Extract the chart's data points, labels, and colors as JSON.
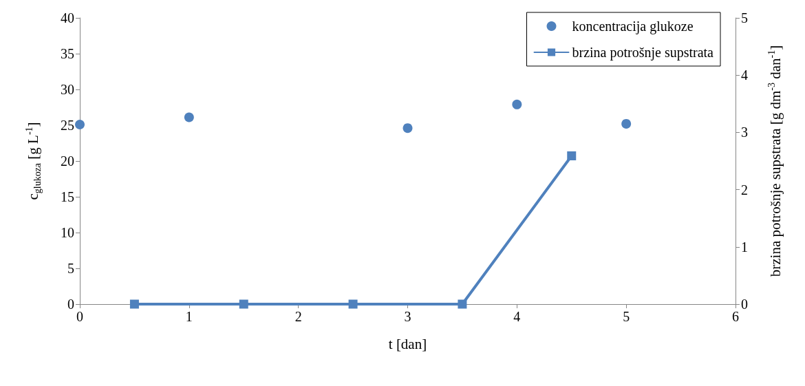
{
  "chart_data": {
    "type": "scatter",
    "xlabel": "t [dan]",
    "ylabel": "c$_{glukoza}$ [g L$^{-1}$]",
    "y2label": "brzina potrošnje supstrata [g dm$^{-3}$ dan$^{-1}$]",
    "xlim": [
      0,
      6
    ],
    "xticks": [
      0,
      1,
      2,
      3,
      4,
      5,
      6
    ],
    "ylim": [
      0,
      40
    ],
    "yticks": [
      0,
      5,
      10,
      15,
      20,
      25,
      30,
      35,
      40
    ],
    "y2lim": [
      0,
      5
    ],
    "y2ticks": [
      0,
      1,
      2,
      3,
      4,
      5
    ],
    "grid": false,
    "legend": "top right",
    "series": [
      {
        "name": "koncentracija glukoze",
        "marker": "circle",
        "color": "#4f81bd",
        "x": [
          0,
          1,
          3,
          4,
          5
        ],
        "values": [
          25.1,
          26.1,
          24.6,
          27.9,
          25.2
        ]
      },
      {
        "name": "brzina potrošnje supstrata",
        "type": "line",
        "marker": "square",
        "line_style": "solid",
        "axis": "y2",
        "color": "#4f81bd",
        "x": [
          0.5,
          1.5,
          2.5,
          3.5,
          4.5
        ],
        "values": [
          0,
          0,
          0,
          0,
          2.59
        ]
      }
    ]
  }
}
